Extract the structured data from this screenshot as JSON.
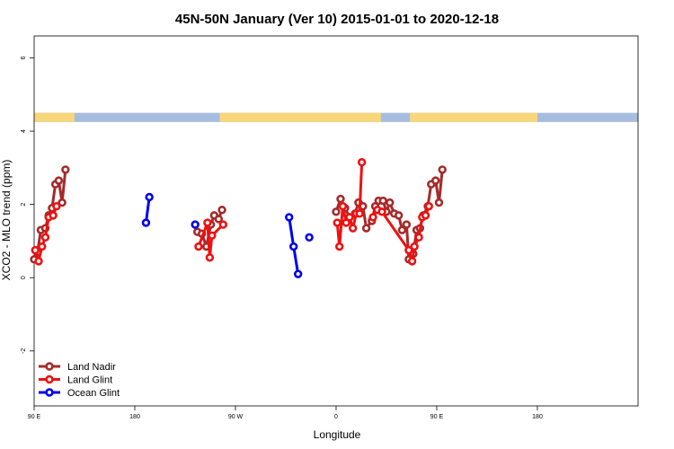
{
  "chart_data": {
    "type": "line",
    "title": "45N-50N January (Ver 10)   2015-01-01 to 2020-12-18",
    "xlabel": "Longitude",
    "ylabel": "XCO2 - MLO trend (ppm)",
    "xlim": [
      -90,
      180
    ],
    "ylim": [
      -3.5,
      6.6
    ],
    "x_ticks": [
      {
        "value": -90,
        "label": "90 E"
      },
      {
        "value": -45,
        "label": "180"
      },
      {
        "value": 0,
        "label": "90 W"
      },
      {
        "value": 45,
        "label": "0"
      },
      {
        "value": 90,
        "label": "90 E"
      },
      {
        "value": 135,
        "label": "180"
      }
    ],
    "y_ticks": [
      {
        "value": -2,
        "label": "-2"
      },
      {
        "value": 0,
        "label": "0"
      },
      {
        "value": 2,
        "label": "2"
      },
      {
        "value": 4,
        "label": "4"
      },
      {
        "value": 6,
        "label": "6"
      }
    ],
    "legend_position": "bottom-left",
    "land_sea_strip": {
      "ymin": 4.25,
      "ymax": 4.5,
      "land_color": "#f7d77a",
      "ocean_color": "#a7bde0"
    },
    "series": [
      {
        "name": "Land Nadir",
        "color": "#a52a2a",
        "segments": [
          [
            [
              -90,
              0.5
            ],
            [
              -88.5,
              0.7
            ],
            [
              -87,
              1.3
            ],
            [
              -85,
              1.35
            ],
            [
              -83.5,
              1.7
            ],
            [
              -82,
              1.9
            ],
            [
              -80.5,
              2.55
            ],
            [
              -79,
              2.65
            ],
            [
              -77.5,
              2.05
            ],
            [
              -76,
              2.95
            ]
          ],
          [
            [
              -17,
              1.25
            ],
            [
              -15,
              1.2
            ],
            [
              -13,
              0.85
            ],
            [
              -11,
              1.45
            ],
            [
              -9.5,
              1.7
            ],
            [
              -7.5,
              1.6
            ],
            [
              -6,
              1.85
            ]
          ],
          [
            [
              45,
              1.8
            ],
            [
              47,
              2.15
            ],
            [
              49,
              1.9
            ],
            [
              51,
              1.65
            ],
            [
              53.5,
              1.75
            ],
            [
              55,
              2.05
            ],
            [
              57,
              1.95
            ],
            [
              58.5,
              1.35
            ],
            [
              61,
              1.55
            ],
            [
              62.5,
              1.95
            ],
            [
              64,
              2.1
            ],
            [
              66,
              2.1
            ],
            [
              67.5,
              1.8
            ],
            [
              69,
              2.05
            ],
            [
              71,
              1.75
            ],
            [
              73,
              1.7
            ],
            [
              74.5,
              1.3
            ],
            [
              76.5,
              1.45
            ],
            [
              77.5,
              0.5
            ],
            [
              79.5,
              0.65
            ],
            [
              81,
              1.3
            ],
            [
              82.5,
              1.35
            ],
            [
              84,
              1.7
            ],
            [
              86,
              1.95
            ],
            [
              87.5,
              2.55
            ],
            [
              89.5,
              2.65
            ],
            [
              91,
              2.05
            ],
            [
              92.5,
              2.95
            ]
          ]
        ]
      },
      {
        "name": "Land Glint",
        "color": "#ee1111",
        "segments": [
          [
            [
              -89.5,
              0.75
            ],
            [
              -88,
              0.45
            ],
            [
              -86.5,
              0.85
            ],
            [
              -85,
              1.1
            ],
            [
              -83.5,
              1.65
            ],
            [
              -81.5,
              1.7
            ],
            [
              -80,
              1.95
            ]
          ],
          [
            [
              -16.5,
              0.85
            ],
            [
              -12.5,
              1.5
            ],
            [
              -11.5,
              0.55
            ],
            [
              -10.5,
              1.15
            ],
            [
              -5.5,
              1.45
            ]
          ],
          [
            [
              45.5,
              1.5
            ],
            [
              46.5,
              0.85
            ],
            [
              48,
              1.95
            ],
            [
              49.5,
              1.5
            ],
            [
              51,
              1.65
            ],
            [
              52.5,
              1.35
            ],
            [
              54,
              1.75
            ],
            [
              55.5,
              1.75
            ],
            [
              56.5,
              3.15
            ]
          ],
          [
            [
              61.5,
              1.65
            ],
            [
              63.5,
              1.85
            ],
            [
              65.5,
              1.8
            ],
            [
              77.5,
              0.75
            ],
            [
              79,
              0.45
            ],
            [
              80,
              0.85
            ],
            [
              82,
              1.1
            ],
            [
              83.5,
              1.65
            ],
            [
              85,
              1.7
            ],
            [
              86.5,
              1.95
            ]
          ]
        ]
      },
      {
        "name": "Ocean Glint",
        "color": "#0000ee",
        "segments": [
          [
            [
              -40,
              1.5
            ],
            [
              -38.5,
              2.2
            ]
          ],
          [
            [
              -18,
              1.45
            ]
          ],
          [
            [
              24,
              1.65
            ],
            [
              26,
              0.85
            ],
            [
              28,
              0.1
            ]
          ],
          [
            [
              33,
              1.1
            ]
          ]
        ]
      }
    ]
  }
}
